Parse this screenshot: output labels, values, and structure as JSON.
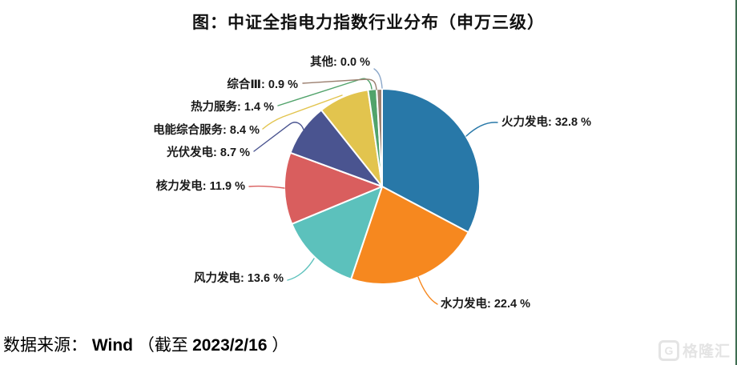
{
  "title": "图：中证全指电力指数行业分布（申万三级）",
  "source": {
    "prefix": "数据来源：",
    "provider": "Wind",
    "paren_open": "（截至 ",
    "date": "2023/2/16",
    "paren_close": "）"
  },
  "watermark": {
    "icon": "gelonghui-logo-icon",
    "icon_letter": "G",
    "text": "格隆汇"
  },
  "colors": {
    "label_text": "#1a1a1a",
    "slice_separator": "#ffffff",
    "other_leader_line": "#8ba7c9",
    "right_border": "#3f6e52",
    "watermark_gray": "#e4e4e4"
  },
  "chart_data": {
    "type": "pie",
    "title": "中证全指电力指数行业分布（申万三级）",
    "unit": "%",
    "start_angle": "12-oclock",
    "direction": "clockwise",
    "legend_position": "none",
    "label_style": "outside-with-leader-lines",
    "categories": [
      "火力发电",
      "水力发电",
      "风力发电",
      "核力发电",
      "光伏发电",
      "电能综合服务",
      "热力服务",
      "综合Ⅲ",
      "其他"
    ],
    "values": [
      32.8,
      22.4,
      13.6,
      11.9,
      8.7,
      8.4,
      1.4,
      0.9,
      0.0
    ],
    "slice_colors": [
      "#2878a8",
      "#f6881f",
      "#5cc1bc",
      "#d95e5e",
      "#4a5490",
      "#e2c44e",
      "#51a36b",
      "#9c8070",
      "#8ba7c9"
    ]
  }
}
